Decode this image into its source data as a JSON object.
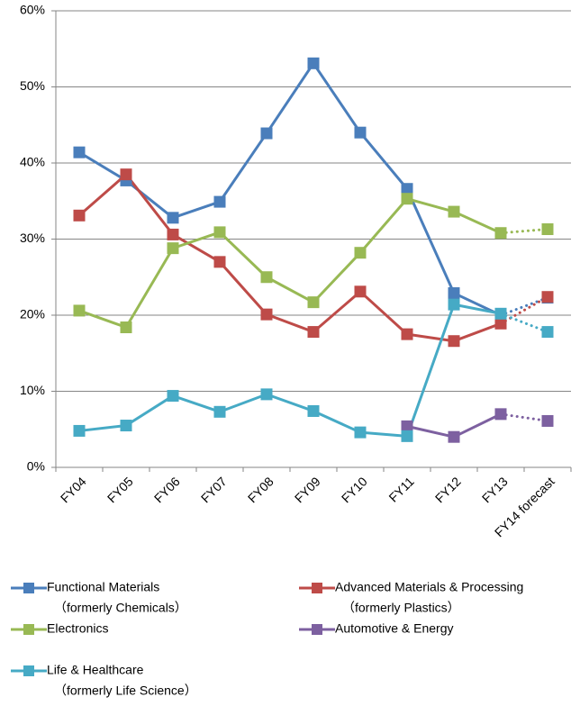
{
  "chart_data": {
    "type": "line",
    "categories": [
      "FY04",
      "FY05",
      "FY06",
      "FY07",
      "FY08",
      "FY09",
      "FY10",
      "FY11",
      "FY12",
      "FY13",
      "FY14 forecast"
    ],
    "series": [
      {
        "name": "Functional Materials",
        "note": "（formerly Chemicals）",
        "color": "#4a7ebb",
        "values": [
          41.4,
          37.7,
          32.8,
          34.9,
          43.9,
          53.1,
          44.0,
          36.6,
          22.9,
          20.0,
          22.3
        ]
      },
      {
        "name": "Advanced Materials & Processing",
        "note": "（formerly Plastics）",
        "color": "#be4b48",
        "values": [
          33.1,
          38.5,
          30.6,
          27.0,
          20.1,
          17.8,
          23.1,
          17.5,
          16.6,
          18.9,
          22.4
        ]
      },
      {
        "name": "Electronics",
        "color": "#98b954",
        "values": [
          20.6,
          18.4,
          28.8,
          30.9,
          25.0,
          21.7,
          28.2,
          35.3,
          33.6,
          30.8,
          31.3
        ]
      },
      {
        "name": "Automotive & Energy",
        "color": "#7d60a0",
        "values": [
          null,
          null,
          null,
          null,
          null,
          null,
          null,
          5.4,
          4.0,
          7.0,
          6.1
        ]
      },
      {
        "name": "Life & Healthcare",
        "note": "（formerly Life Science）",
        "color": "#46aac5",
        "values": [
          4.8,
          5.5,
          9.4,
          7.3,
          9.6,
          7.4,
          4.6,
          4.1,
          21.4,
          20.2,
          17.8
        ]
      }
    ],
    "ylim": [
      0,
      60
    ],
    "yticks": [
      {
        "value": 0,
        "label": "0%"
      },
      {
        "value": 10,
        "label": "10%"
      },
      {
        "value": 20,
        "label": "20%"
      },
      {
        "value": 30,
        "label": "30%"
      },
      {
        "value": 40,
        "label": "40%"
      },
      {
        "value": 50,
        "label": "50%"
      },
      {
        "value": 60,
        "label": "60%"
      }
    ],
    "grid": true,
    "dotted_last_segment": true,
    "legend": "bottom"
  }
}
